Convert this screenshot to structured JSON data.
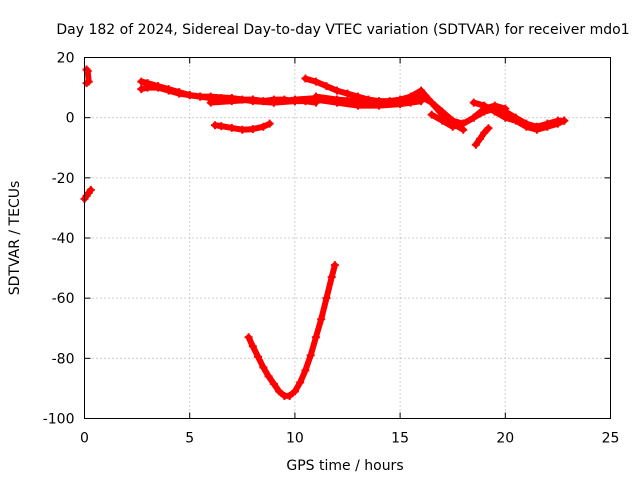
{
  "chart_data": {
    "type": "scatter",
    "title": "Day 182 of 2024, Sidereal Day-to-day VTEC variation (SDTVAR) for receiver mdo1",
    "xlabel": "GPS time / hours",
    "ylabel": "SDTVAR / TECUs",
    "xlim": [
      0,
      25
    ],
    "ylim": [
      -100,
      20
    ],
    "xticks": [
      0,
      5,
      10,
      15,
      20,
      25
    ],
    "yticks": [
      -100,
      -80,
      -60,
      -40,
      -20,
      0,
      20
    ],
    "xtick_labels": [
      "0",
      "5",
      "10",
      "15",
      "20",
      "25"
    ],
    "ytick_labels": [
      "-100",
      "-80",
      "-60",
      "-40",
      "-20",
      "0",
      "20"
    ],
    "grid": true,
    "marker": "plus",
    "series": [
      {
        "name": "isolated-points",
        "color": "#ff0000",
        "x": [
          0.1,
          0.15,
          0.2,
          0.1
        ],
        "y": [
          16,
          15.5,
          12,
          11.5
        ]
      },
      {
        "name": "arc-left-edge",
        "color": "#ff0000",
        "x": [
          0.0,
          0.1,
          0.2,
          0.3
        ],
        "y": [
          -27,
          -26,
          -25,
          -24
        ]
      },
      {
        "name": "arc-upper-main-a",
        "color": "#ff0000",
        "x": [
          2.7,
          3.0,
          3.5,
          4.0,
          4.5,
          5.0,
          5.5,
          6.0,
          6.5,
          7.0,
          7.5,
          8.0,
          8.5,
          9.0,
          9.5,
          10.0,
          10.5,
          11.0
        ],
        "y": [
          12,
          11.5,
          10.5,
          9.5,
          8.5,
          7.5,
          7,
          6.5,
          6.5,
          6.5,
          6,
          6,
          5.5,
          6,
          6,
          5.5,
          5.5,
          5
        ]
      },
      {
        "name": "arc-upper-main-b",
        "color": "#ff0000",
        "x": [
          2.7,
          3.0,
          3.5,
          4.0,
          4.5,
          5.0,
          5.5,
          6.0,
          7.0,
          8.0,
          9.0,
          10.0,
          11.0,
          12.0,
          13.0,
          14.0
        ],
        "y": [
          9.5,
          10,
          10,
          9,
          8,
          7.5,
          7,
          7,
          6.5,
          5.5,
          5,
          6,
          6.5,
          6,
          5.5,
          5
        ]
      },
      {
        "name": "arc-upper-main-c",
        "color": "#ff0000",
        "x": [
          6.0,
          7.0,
          8.0,
          9.0,
          10.0,
          11.0,
          12.0,
          13.0,
          14.0,
          15.0,
          15.5,
          16.0
        ],
        "y": [
          5,
          5.5,
          6,
          5,
          5.5,
          6,
          5,
          4,
          4,
          4.5,
          5,
          5.5
        ]
      },
      {
        "name": "arc-upper-right-a",
        "color": "#ff0000",
        "x": [
          10.5,
          11.0,
          11.5,
          12.0,
          12.5,
          13.0,
          13.5,
          14.0,
          14.5,
          15.0,
          15.5,
          16.0,
          16.5,
          17.0,
          17.5,
          18.0
        ],
        "y": [
          13,
          12,
          10.5,
          9,
          8,
          7,
          6,
          5.5,
          5.5,
          6,
          7,
          9,
          5,
          1,
          -2,
          -4
        ]
      },
      {
        "name": "arc-upper-right-b",
        "color": "#ff0000",
        "x": [
          11.0,
          12.0,
          13.0,
          14.0,
          15.0,
          15.5,
          16.0,
          16.5,
          17.0,
          17.5,
          18.0,
          18.5,
          19.0,
          19.5,
          20.0
        ],
        "y": [
          7,
          6,
          5,
          4.5,
          5,
          6,
          7,
          5,
          2,
          -1,
          -2,
          0,
          3,
          4,
          3
        ]
      },
      {
        "name": "arc-right-tail",
        "color": "#ff0000",
        "x": [
          16.5,
          17.0,
          17.5,
          18.0,
          18.5,
          19.0,
          19.5,
          20.0,
          20.5,
          21.0,
          21.5,
          22.0,
          22.5,
          22.8
        ],
        "y": [
          1,
          -1,
          -3,
          -2,
          0,
          2,
          3,
          2,
          0,
          -2,
          -3,
          -2,
          -1,
          -1
        ]
      },
      {
        "name": "arc-right-lower",
        "color": "#ff0000",
        "x": [
          18.5,
          19.0,
          19.5,
          20.0,
          20.5,
          21.0,
          21.5,
          22.0,
          22.5,
          22.8
        ],
        "y": [
          5,
          4,
          2,
          0,
          -1,
          -3,
          -4,
          -3,
          -2,
          -1
        ]
      },
      {
        "name": "arc-short-descent",
        "color": "#ff0000",
        "x": [
          18.6,
          18.8,
          19.0,
          19.2
        ],
        "y": [
          -9,
          -7,
          -5,
          -3.5
        ]
      },
      {
        "name": "arc-middle-low",
        "color": "#ff0000",
        "x": [
          6.2,
          6.5,
          7.0,
          7.5,
          8.0,
          8.5,
          8.8
        ],
        "y": [
          -2.5,
          -2.8,
          -3.4,
          -4.0,
          -3.8,
          -3,
          -2
        ]
      },
      {
        "name": "arc-deep-dip",
        "color": "#ff0000",
        "x": [
          7.8,
          8.0,
          8.25,
          8.5,
          8.75,
          9.0,
          9.25,
          9.5,
          9.75,
          10.0,
          10.25,
          10.5,
          10.75,
          11.0,
          11.25,
          11.5,
          11.75,
          11.9
        ],
        "y": [
          -73,
          -76,
          -79.5,
          -83,
          -86,
          -88.5,
          -91,
          -92.5,
          -92.5,
          -91,
          -88,
          -84,
          -79,
          -73,
          -67,
          -60,
          -53,
          -49
        ]
      }
    ]
  }
}
